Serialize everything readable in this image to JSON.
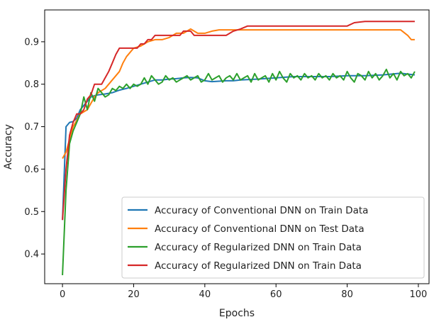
{
  "chart_data": {
    "type": "line",
    "title": "",
    "xlabel": "Epochs",
    "ylabel": "Accuracy",
    "xlim": [
      -5,
      103
    ],
    "ylim": [
      0.33,
      0.975
    ],
    "xticks": [
      0,
      20,
      40,
      60,
      80,
      100
    ],
    "yticks": [
      0.4,
      0.5,
      0.6,
      0.7,
      0.8,
      0.9
    ],
    "grid": false,
    "legend_position": "lower-right",
    "series": [
      {
        "name": "Accuracy of Conventional DNN on Train Data",
        "color": "#1f77b4",
        "x": [
          0,
          1,
          2,
          3,
          4,
          5,
          6,
          7,
          8,
          9,
          10,
          12,
          14,
          16,
          18,
          20,
          22,
          24,
          26,
          28,
          30,
          32,
          34,
          36,
          38,
          40,
          42,
          44,
          46,
          48,
          50,
          55,
          60,
          65,
          70,
          75,
          80,
          85,
          90,
          95,
          99
        ],
        "y": [
          0.48,
          0.7,
          0.71,
          0.712,
          0.72,
          0.74,
          0.75,
          0.76,
          0.77,
          0.773,
          0.775,
          0.777,
          0.78,
          0.786,
          0.79,
          0.795,
          0.8,
          0.805,
          0.81,
          0.81,
          0.812,
          0.813,
          0.815,
          0.816,
          0.815,
          0.808,
          0.806,
          0.807,
          0.808,
          0.808,
          0.81,
          0.812,
          0.815,
          0.818,
          0.818,
          0.818,
          0.82,
          0.82,
          0.822,
          0.826,
          0.822
        ]
      },
      {
        "name": "Accuracy of Conventional DNN on Test Data",
        "color": "#ff7f0e",
        "x": [
          0,
          1,
          2,
          3,
          4,
          5,
          6,
          7,
          8,
          9,
          10,
          12,
          14,
          16,
          17,
          18,
          20,
          22,
          24,
          26,
          28,
          30,
          32,
          34,
          36,
          38,
          40,
          42,
          44,
          46,
          48,
          50,
          55,
          60,
          65,
          70,
          75,
          80,
          85,
          90,
          95,
          97,
          98,
          99
        ],
        "y": [
          0.625,
          0.64,
          0.67,
          0.7,
          0.715,
          0.73,
          0.735,
          0.74,
          0.755,
          0.77,
          0.78,
          0.79,
          0.81,
          0.83,
          0.85,
          0.865,
          0.885,
          0.89,
          0.9,
          0.905,
          0.905,
          0.91,
          0.92,
          0.92,
          0.93,
          0.92,
          0.92,
          0.925,
          0.928,
          0.928,
          0.928,
          0.928,
          0.928,
          0.928,
          0.928,
          0.928,
          0.928,
          0.928,
          0.928,
          0.928,
          0.928,
          0.915,
          0.905,
          0.905
        ]
      },
      {
        "name": "Accuracy of Regularized DNN on Train Data",
        "color": "#2ca02c",
        "x": [
          0,
          1,
          2,
          3,
          4,
          5,
          6,
          7,
          8,
          9,
          10,
          11,
          12,
          13,
          14,
          15,
          16,
          17,
          18,
          19,
          20,
          21,
          22,
          23,
          24,
          25,
          26,
          27,
          28,
          29,
          30,
          31,
          32,
          33,
          34,
          35,
          36,
          37,
          38,
          39,
          40,
          41,
          42,
          43,
          44,
          45,
          46,
          47,
          48,
          49,
          50,
          51,
          52,
          53,
          54,
          55,
          56,
          57,
          58,
          59,
          60,
          61,
          62,
          63,
          64,
          65,
          66,
          67,
          68,
          69,
          70,
          71,
          72,
          73,
          74,
          75,
          76,
          77,
          78,
          79,
          80,
          81,
          82,
          83,
          84,
          85,
          86,
          87,
          88,
          89,
          90,
          91,
          92,
          93,
          94,
          95,
          96,
          97,
          98,
          99
        ],
        "y": [
          0.35,
          0.55,
          0.66,
          0.69,
          0.71,
          0.73,
          0.77,
          0.74,
          0.78,
          0.76,
          0.79,
          0.78,
          0.77,
          0.775,
          0.79,
          0.785,
          0.795,
          0.79,
          0.8,
          0.79,
          0.8,
          0.795,
          0.8,
          0.815,
          0.8,
          0.82,
          0.81,
          0.8,
          0.805,
          0.82,
          0.81,
          0.815,
          0.805,
          0.81,
          0.815,
          0.82,
          0.81,
          0.815,
          0.82,
          0.805,
          0.81,
          0.825,
          0.81,
          0.815,
          0.82,
          0.805,
          0.815,
          0.82,
          0.81,
          0.825,
          0.81,
          0.815,
          0.82,
          0.805,
          0.825,
          0.81,
          0.815,
          0.82,
          0.805,
          0.825,
          0.81,
          0.83,
          0.815,
          0.805,
          0.825,
          0.815,
          0.82,
          0.81,
          0.825,
          0.815,
          0.82,
          0.81,
          0.825,
          0.815,
          0.82,
          0.81,
          0.825,
          0.815,
          0.82,
          0.81,
          0.83,
          0.815,
          0.805,
          0.825,
          0.82,
          0.81,
          0.83,
          0.815,
          0.825,
          0.81,
          0.82,
          0.835,
          0.815,
          0.825,
          0.81,
          0.83,
          0.82,
          0.825,
          0.815,
          0.83
        ]
      },
      {
        "name": "Accuracy of Regularized DNN on Train Data",
        "color": "#d62728",
        "x": [
          0,
          1,
          2,
          3,
          4,
          5,
          6,
          7,
          8,
          9,
          10,
          11,
          12,
          13,
          14,
          15,
          16,
          17,
          18,
          19,
          20,
          21,
          22,
          23,
          24,
          25,
          26,
          27,
          28,
          29,
          30,
          31,
          32,
          33,
          34,
          35,
          36,
          37,
          38,
          39,
          40,
          42,
          44,
          46,
          48,
          50,
          52,
          55,
          60,
          65,
          70,
          75,
          80,
          82,
          85,
          90,
          95,
          99
        ],
        "y": [
          0.48,
          0.6,
          0.68,
          0.71,
          0.73,
          0.73,
          0.74,
          0.765,
          0.775,
          0.8,
          0.8,
          0.8,
          0.815,
          0.83,
          0.85,
          0.87,
          0.885,
          0.885,
          0.885,
          0.885,
          0.885,
          0.885,
          0.895,
          0.895,
          0.905,
          0.905,
          0.915,
          0.915,
          0.915,
          0.915,
          0.915,
          0.915,
          0.915,
          0.915,
          0.925,
          0.925,
          0.925,
          0.915,
          0.915,
          0.915,
          0.915,
          0.915,
          0.915,
          0.915,
          0.925,
          0.93,
          0.937,
          0.937,
          0.937,
          0.937,
          0.937,
          0.937,
          0.937,
          0.945,
          0.948,
          0.948,
          0.948,
          0.948
        ]
      }
    ]
  }
}
